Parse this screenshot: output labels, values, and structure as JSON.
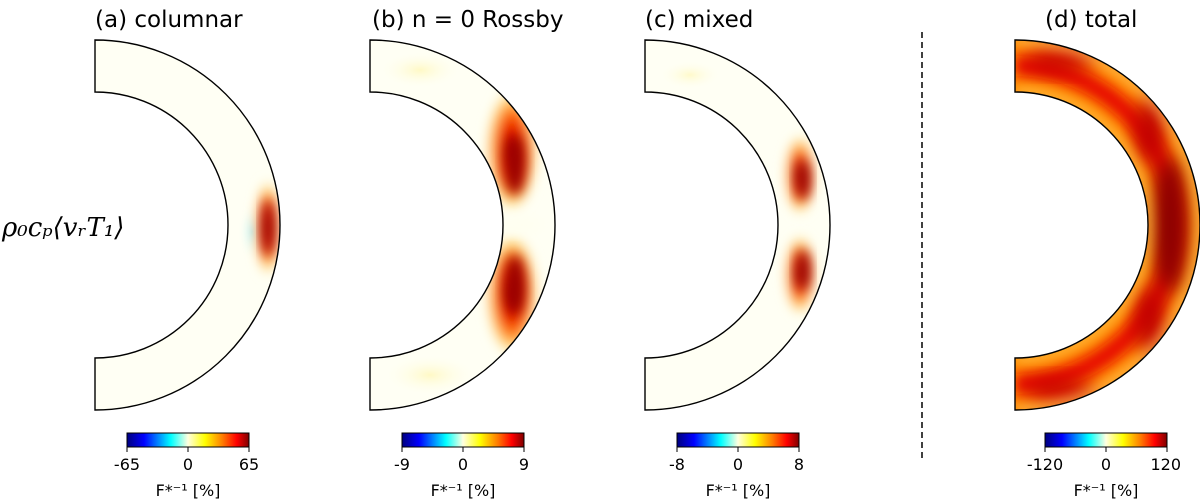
{
  "row_label": "ρ₀cₚ⟨vᵣT₁⟩",
  "colorbar_label": "F*⁻¹ [%]",
  "panels": [
    {
      "title": "(a) columnar",
      "cbar_min": "-65",
      "cbar_mid": "0",
      "cbar_max": "65"
    },
    {
      "title": "(b) n = 0 Rossby",
      "cbar_min": "-9",
      "cbar_mid": "0",
      "cbar_max": "9"
    },
    {
      "title": "(c) mixed",
      "cbar_min": "-8",
      "cbar_mid": "0",
      "cbar_max": "8"
    },
    {
      "title": "(d) total",
      "cbar_min": "-120",
      "cbar_mid": "0",
      "cbar_max": "120"
    }
  ],
  "colormap": [
    "#00007f",
    "#0000ff",
    "#00ffff",
    "#ffffe0",
    "#ffff00",
    "#ff7f00",
    "#ff0000",
    "#7f0000"
  ]
}
